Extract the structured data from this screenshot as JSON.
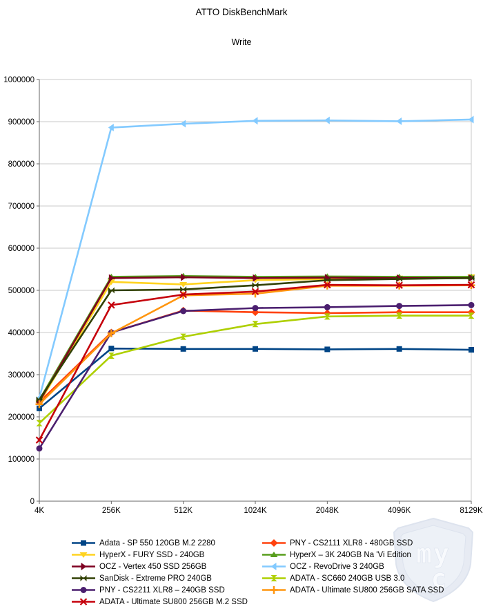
{
  "title": "ATTO DiskBenchMark",
  "subtitle": "Write",
  "watermark": {
    "letters_top": "my",
    "letters_bottom": "c"
  },
  "colors": {
    "grid": "#c9c9c9",
    "axis": "#666666",
    "tick_text": "#000000",
    "watermark_fill": "#e7ebf3",
    "watermark_stroke": "#dde3ee",
    "watermark_inner": "#edf1f7",
    "watermark_letters": "#f8fafd"
  },
  "chart_data": {
    "type": "line",
    "title": "ATTO DiskBenchMark",
    "subtitle": "Write",
    "categories": [
      "4K",
      "256K",
      "512K",
      "1024K",
      "2048K",
      "4096K",
      "8129K"
    ],
    "xlabel": "",
    "ylabel": "",
    "ylim": [
      0,
      1000000
    ],
    "ytick_step": 100000,
    "y_tick_labels": [
      "0",
      "100000",
      "200000",
      "300000",
      "400000",
      "500000",
      "600000",
      "700000",
      "800000",
      "900000",
      "1000000"
    ],
    "grid": "horizontal",
    "legend_position": "bottom",
    "series": [
      {
        "name": "Adata - SP 550 120GB M.2 2280",
        "color": "#004586",
        "marker": "square",
        "values": [
          220000,
          362000,
          361000,
          361000,
          360000,
          361000,
          359000
        ]
      },
      {
        "name": "PNY - CS2111 XLR8 - 480GB SSD",
        "color": "#FF420E",
        "marker": "diamond",
        "values": [
          235000,
          400000,
          452000,
          448000,
          446000,
          448000,
          448000
        ]
      },
      {
        "name": "HyperX - FURY SSD - 240GB",
        "color": "#FFD320",
        "marker": "tri-down",
        "values": [
          233000,
          520000,
          514000,
          524000,
          527000,
          529000,
          532000
        ]
      },
      {
        "name": "HyperX – 3K 240GB Na 'Vi Edition",
        "color": "#579D1C",
        "marker": "tri-up",
        "values": [
          240000,
          532000,
          534000,
          532000,
          533000,
          532000,
          532000
        ]
      },
      {
        "name": "OCZ - Vertex 450 SSD 256GB",
        "color": "#7E0021",
        "marker": "tri-right",
        "values": [
          236000,
          529000,
          531000,
          529000,
          530000,
          529000,
          529000
        ]
      },
      {
        "name": "OCZ - RevoDrive 3 240GB",
        "color": "#83CAFF",
        "marker": "tri-left",
        "values": [
          245000,
          886000,
          895000,
          902000,
          903000,
          901000,
          905000
        ]
      },
      {
        "name": "SanDisk - Extreme PRO 240GB",
        "color": "#314004",
        "marker": "bowtie",
        "values": [
          241000,
          500000,
          502000,
          512000,
          524000,
          527000,
          529000
        ]
      },
      {
        "name": "ADATA - SC660 240GB USB 3.0",
        "color": "#AECF00",
        "marker": "hourglass",
        "values": [
          185000,
          345000,
          390000,
          420000,
          438000,
          440000,
          440000
        ]
      },
      {
        "name": "PNY - CS2211 XLR8 – 240GB SSD",
        "color": "#4B1F6F",
        "marker": "circle",
        "values": [
          125000,
          400000,
          451000,
          458000,
          460000,
          463000,
          465000
        ]
      },
      {
        "name": "ADATA - Ultimate SU800 256GB SATA SSD",
        "color": "#FF950E",
        "marker": "plus",
        "values": [
          230000,
          398000,
          488000,
          492000,
          511000,
          511000,
          512000
        ]
      },
      {
        "name": "ADATA - Ultimate SU800 256GB M.2 SSD",
        "color": "#C5000B",
        "marker": "x",
        "values": [
          145000,
          465000,
          490000,
          497000,
          513000,
          512000,
          513000
        ]
      }
    ],
    "legend_layout": [
      [
        0,
        1
      ],
      [
        2,
        3
      ],
      [
        4,
        5
      ],
      [
        6,
        7
      ],
      [
        8,
        9
      ],
      [
        10,
        null
      ]
    ]
  }
}
